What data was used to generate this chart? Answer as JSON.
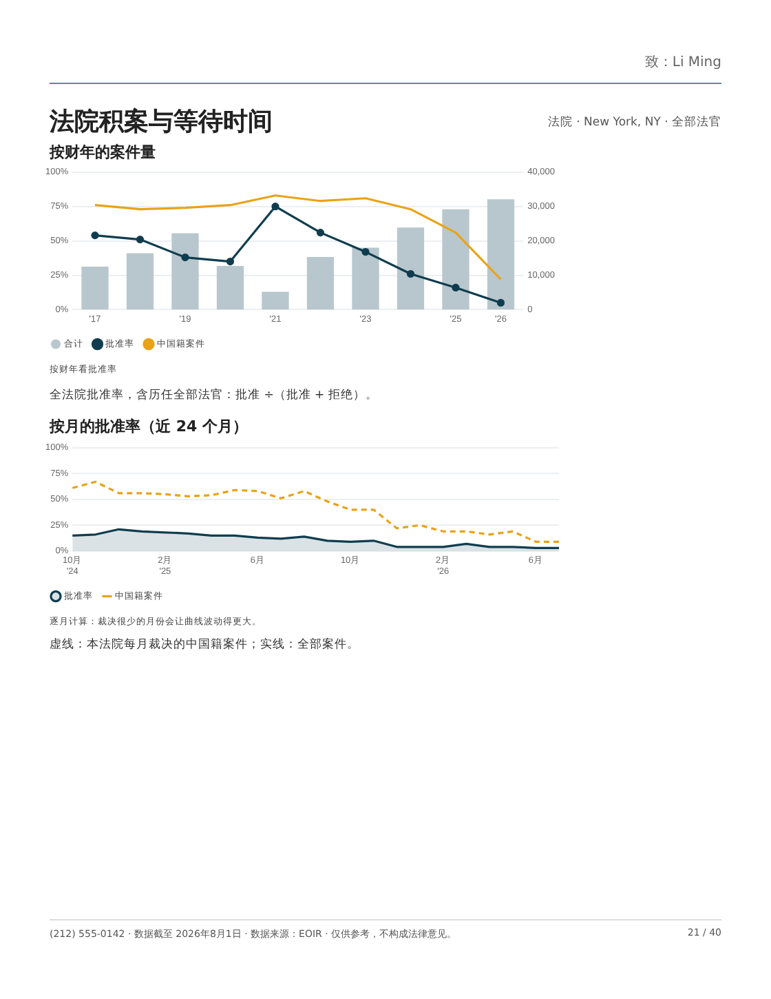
{
  "chart_data": [
    {
      "type": "bar",
      "title": "法院积案与等待时间",
      "subtitle": "按财年的案件量",
      "categories": [
        "'17",
        null,
        "'19",
        null,
        "'21",
        null,
        "'23",
        null,
        "'25",
        "'26"
      ],
      "series": [
        {
          "name": "合计",
          "axis": "y2",
          "color": "#b8c7cd",
          "values": [
            12500,
            16400,
            22200,
            12700,
            5200,
            15300,
            18000,
            23900,
            29200,
            32100
          ]
        },
        {
          "name": "批准率",
          "type": "line",
          "color": "#0f3d4f",
          "marker": "circle",
          "values": [
            54,
            51,
            38,
            35,
            75,
            56,
            42,
            26,
            16,
            5
          ]
        },
        {
          "name": "中国籍案件",
          "type": "line",
          "color": "#e8a317",
          "marker": "none",
          "values": [
            76,
            73,
            74,
            76,
            83,
            79,
            81,
            73,
            56,
            22
          ]
        }
      ],
      "ylim": [
        0,
        100
      ],
      "yticks": [
        {
          "value": 0,
          "label": "0%"
        },
        {
          "value": 25,
          "label": "25%"
        },
        {
          "value": 50,
          "label": "50%"
        },
        {
          "value": 75,
          "label": "75%"
        },
        {
          "value": 100,
          "label": "100%"
        }
      ],
      "y2lim": [
        0,
        40000
      ],
      "y2ticks": [
        0,
        {
          "value": 10000,
          "label": "10,000"
        },
        {
          "value": 20000,
          "label": "20,000"
        },
        {
          "value": 30000,
          "label": "30,000"
        },
        {
          "value": 40000,
          "label": "40,000"
        }
      ],
      "grid": "y",
      "legend": "bottom left",
      "annotations": [
        "法院 · New York, NY · 全部法官",
        "致：Li Ming",
        "按财年看批准率",
        "全法院批准率，含历任全部法官：批准 ÷（批准 + 拒绝）。",
        "(212) 555-0142 · 数据截至 2026年8月1日 · 数据来源：EOIR · 仅供参考，不构成法律意见。",
        "21 / 40"
      ]
    },
    {
      "type": "line",
      "title": "按月的批准率（近 24 个月）",
      "categories": [
        "10月\n'24",
        null,
        null,
        null,
        "2月\n'25",
        null,
        null,
        null,
        "6月",
        null,
        null,
        null,
        "10月",
        null,
        null,
        null,
        "2月\n'26",
        null,
        null,
        null,
        "6月",
        null
      ],
      "series": [
        {
          "name": "批准率",
          "type": "area",
          "color": "#0f3d4f",
          "line_style": "solid",
          "values": [
            15,
            16,
            21,
            19,
            18,
            17,
            15,
            15,
            13,
            12,
            14,
            10,
            9,
            10,
            4,
            4,
            4,
            7,
            4,
            4,
            3,
            3
          ]
        },
        {
          "name": "中国籍案件",
          "color": "#e8a317",
          "line_style": "dashed",
          "values": [
            61,
            67,
            56,
            56,
            55,
            53,
            54,
            59,
            58,
            51,
            58,
            48,
            40,
            40,
            22,
            25,
            19,
            19,
            16,
            19,
            9,
            9
          ]
        }
      ],
      "ylim": [
        0,
        100
      ],
      "yticks": [
        {
          "value": 0,
          "label": "0%"
        },
        {
          "value": 25,
          "label": "25%"
        },
        {
          "value": 50,
          "label": "50%"
        },
        {
          "value": 75,
          "label": "75%"
        },
        {
          "value": 100,
          "label": "100%"
        }
      ],
      "grid": "y",
      "legend": "bottom left",
      "marker": "none",
      "annotations": [
        "逐月计算：裁决很少的月份会让曲线波动得更大。",
        "虚线：本法院每月裁决的中国籍案件；实线：全部案件。"
      ]
    }
  ]
}
